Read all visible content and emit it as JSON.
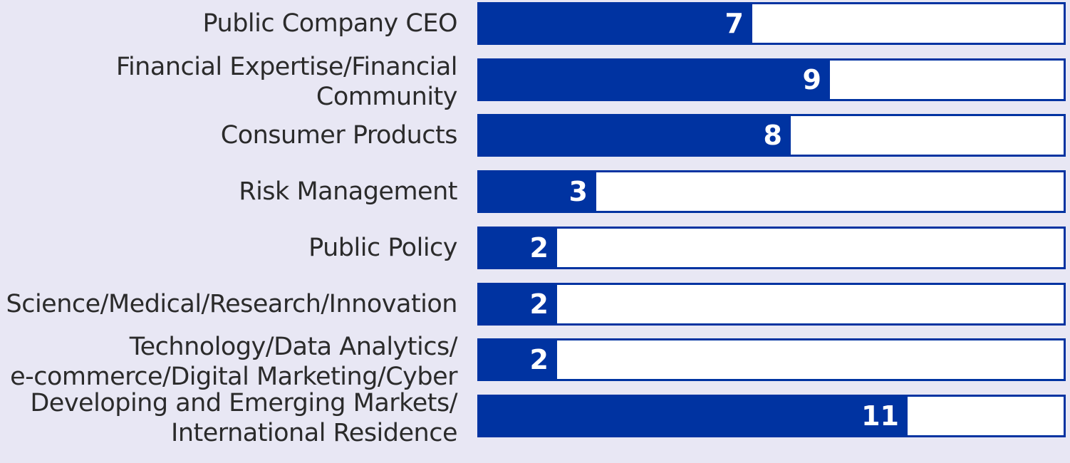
{
  "chart_data": {
    "type": "bar",
    "orientation": "horizontal",
    "categories": [
      [
        "Public Company CEO"
      ],
      [
        "Financial Expertise/Financial",
        "Community"
      ],
      [
        "Consumer Products"
      ],
      [
        "Risk Management"
      ],
      [
        "Public Policy"
      ],
      [
        "Science/Medical/Research/Innovation"
      ],
      [
        "Technology/Data Analytics/",
        "e-commerce/Digital Marketing/Cyber"
      ],
      [
        "Developing and Emerging Markets/",
        "International Residence"
      ]
    ],
    "values": [
      7,
      9,
      8,
      3,
      2,
      2,
      2,
      11
    ],
    "data_labels": [
      "7",
      "9",
      "8",
      "3",
      "2",
      "2",
      "2",
      "11"
    ],
    "xlim": [
      0,
      15
    ],
    "grid": false,
    "legend": "none",
    "colors": {
      "bar": "#0033a1",
      "track": "#ffffff",
      "background": "#e8e7f4",
      "label_text": "#2b2b2b",
      "value_text": "#ffffff"
    }
  }
}
